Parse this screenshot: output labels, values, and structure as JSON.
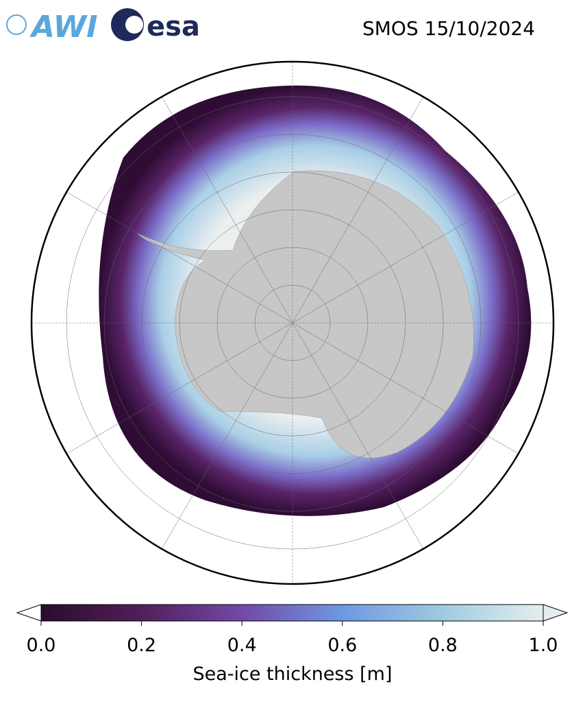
{
  "logos": [
    "AWI",
    "esa"
  ],
  "title": "SMOS 15/10/2024",
  "colorbar": {
    "label": "Sea-ice thickness [m]",
    "lim": [
      0,
      1
    ],
    "ticks": [
      {
        "value": 0,
        "label": "0.0"
      },
      0.2,
      0.4,
      0.6,
      0.8,
      {
        "value": 1,
        "label": "1.0"
      }
    ]
  }
}
